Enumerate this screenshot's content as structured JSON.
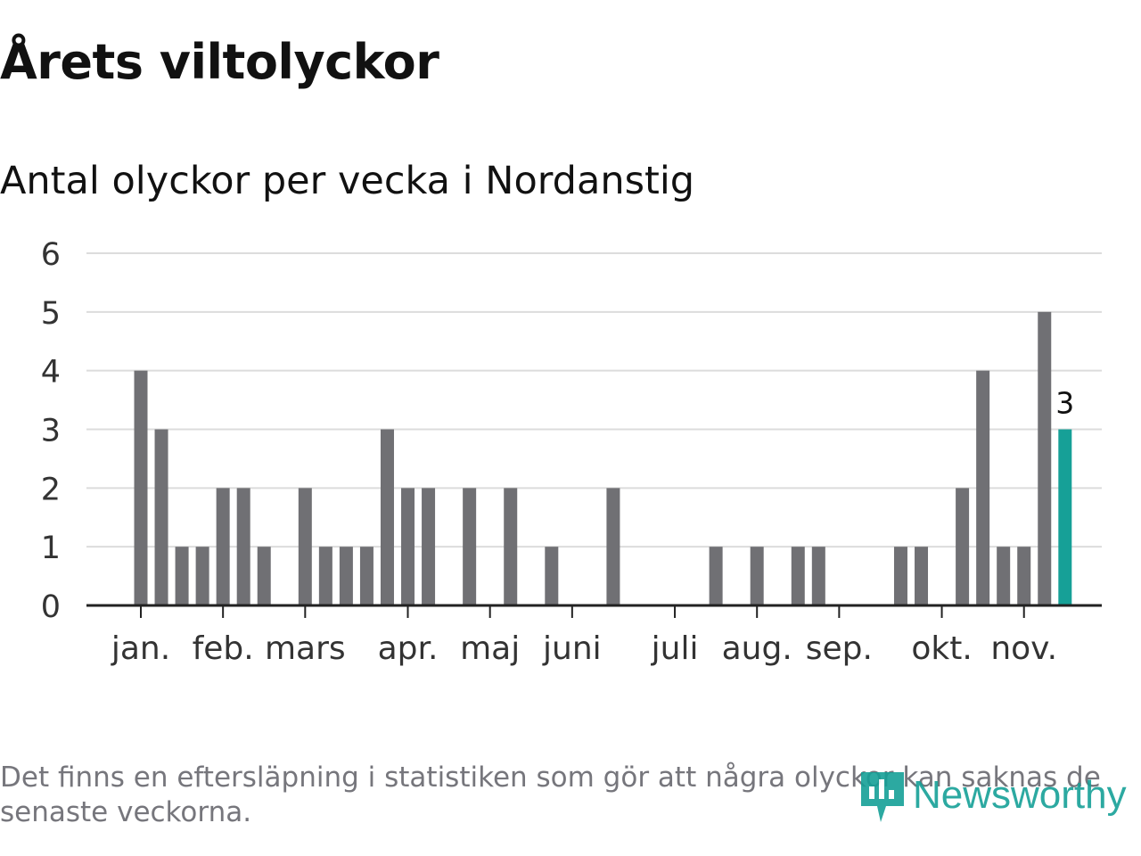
{
  "title": "Årets viltolyckor",
  "subtitle": "Antal olyckor per vecka i Nordanstig",
  "note": "Det finns en eftersläpning i statistiken som gör att några olyckor kan saknas de senaste veckorna.",
  "logo": {
    "text": "Newsworthy",
    "icon": "newsworthy-logo-icon"
  },
  "colors": {
    "bar": "#707074",
    "highlight": "#16a097",
    "grid": "#dcdcdc",
    "axis": "#222222",
    "text": "#333333"
  },
  "chart_data": {
    "type": "bar",
    "title": "Antal olyckor per vecka i Nordanstig",
    "xlabel": "",
    "ylabel": "",
    "ylim": [
      0,
      6
    ],
    "yticks": [
      0,
      1,
      2,
      3,
      4,
      5,
      6
    ],
    "weeks": [
      1,
      2,
      3,
      4,
      5,
      6,
      7,
      8,
      9,
      10,
      11,
      12,
      13,
      14,
      15,
      16,
      17,
      18,
      19,
      20,
      21,
      22,
      23,
      24,
      25,
      26,
      27,
      28,
      29,
      30,
      31,
      32,
      33,
      34,
      35,
      36,
      37,
      38,
      39,
      40,
      41,
      42,
      43,
      44,
      45,
      46
    ],
    "values": [
      4,
      3,
      1,
      1,
      2,
      2,
      1,
      0,
      2,
      1,
      1,
      1,
      3,
      2,
      2,
      0,
      2,
      0,
      2,
      0,
      1,
      0,
      0,
      2,
      0,
      0,
      0,
      0,
      1,
      0,
      1,
      0,
      1,
      1,
      0,
      0,
      0,
      1,
      1,
      0,
      2,
      4,
      1,
      1,
      5,
      3
    ],
    "highlight_value": 3,
    "highlight_label": "3",
    "month_ticks": [
      {
        "label": "jan.",
        "week": 1
      },
      {
        "label": "feb.",
        "week": 5
      },
      {
        "label": "mars",
        "week": 9
      },
      {
        "label": "apr.",
        "week": 14
      },
      {
        "label": "maj",
        "week": 18
      },
      {
        "label": "juni",
        "week": 22
      },
      {
        "label": "juli",
        "week": 27
      },
      {
        "label": "aug.",
        "week": 31
      },
      {
        "label": "sep.",
        "week": 35
      },
      {
        "label": "okt.",
        "week": 40
      },
      {
        "label": "nov.",
        "week": 44
      }
    ]
  }
}
